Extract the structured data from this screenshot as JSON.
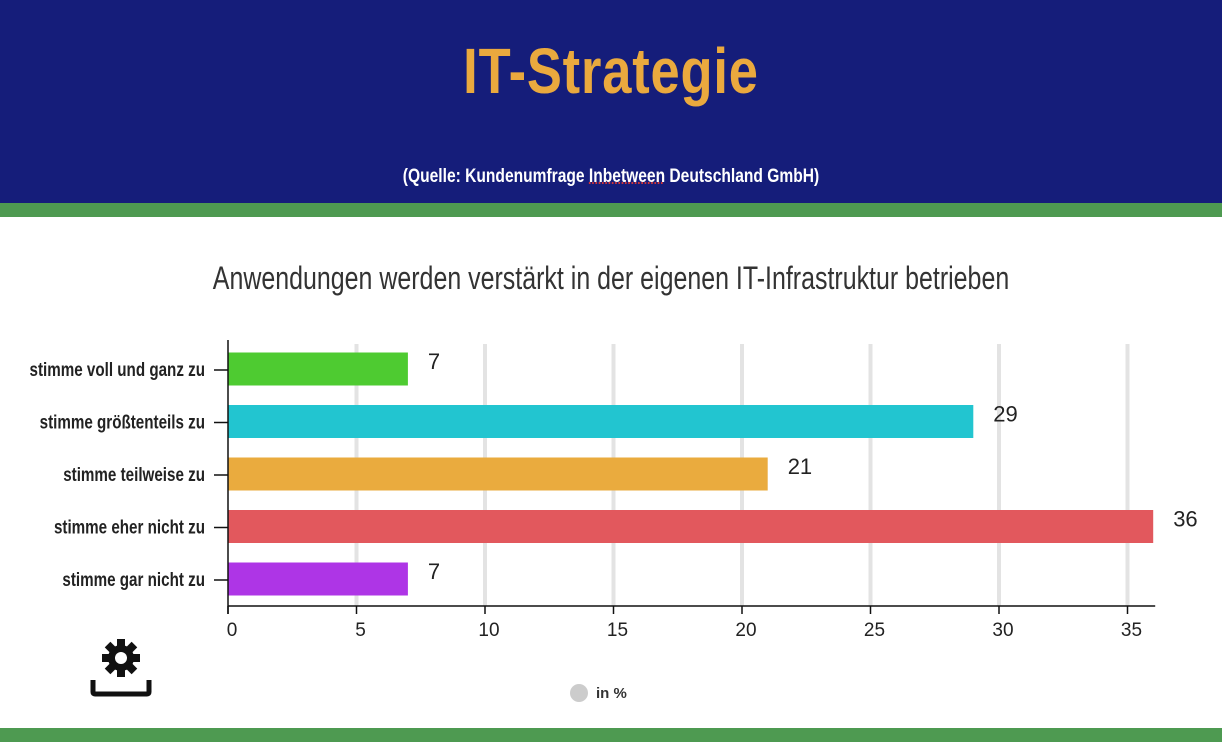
{
  "header": {
    "title": "IT-Strategie",
    "source_prefix": "(Quelle: Kundenumfrage ",
    "source_brand": "Inbetween",
    "source_suffix": " Deutschland GmbH)"
  },
  "colors": {
    "header_bg": "#151d7a",
    "accent": "#eaa93e",
    "band": "#4e9a51"
  },
  "legend": {
    "label": "in %"
  },
  "chart_data": {
    "type": "bar",
    "orientation": "horizontal",
    "title": "Anwendungen werden verstärkt in der eigenen IT-Infrastruktur betrieben",
    "categories": [
      "stimme voll und ganz zu",
      "stimme größtenteils zu",
      "stimme teilweise zu",
      "stimme eher nicht zu",
      "stimme gar nicht zu"
    ],
    "values": [
      7,
      29,
      21,
      36,
      7
    ],
    "colors": [
      "#4ecb31",
      "#22c5d0",
      "#eaab3e",
      "#e2585d",
      "#ae35e6"
    ],
    "xticks": [
      0,
      5,
      10,
      15,
      20,
      25,
      30,
      35
    ],
    "xlim": [
      0,
      36
    ],
    "series_name": "in %",
    "grid": true
  }
}
